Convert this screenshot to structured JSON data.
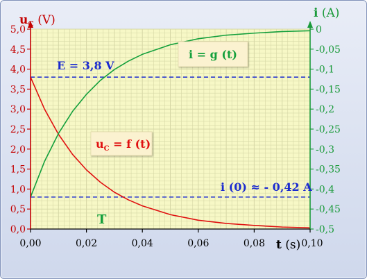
{
  "chart_data": {
    "type": "line",
    "y_left_label": {
      "main": "u",
      "sub": "C",
      "unit": "(V)"
    },
    "y_right_label": {
      "main": "i",
      "unit": "(A)"
    },
    "x_label": {
      "main": "t",
      "unit": "(s)"
    },
    "x_range": [
      0,
      0.1
    ],
    "y_left_range": [
      0,
      5.0
    ],
    "y_right_range": [
      -0.5,
      0
    ],
    "x_ticks": [
      "0,00",
      "0,02",
      "0,04",
      "0,06",
      "0,08",
      "0,10"
    ],
    "y_left_ticks": [
      "0,0",
      "0,5",
      "1,0",
      "1,5",
      "2,0",
      "2,5",
      "3,0",
      "3,5",
      "4,0",
      "4,5",
      "5,0"
    ],
    "y_right_ticks": [
      "-0,5",
      "-0,45",
      "-0,4",
      "-0,35",
      "-0,3",
      "-0,25",
      "-0,2",
      "-0,15",
      "-0,1",
      "-0,05",
      "0"
    ],
    "grid": true,
    "series": [
      {
        "axis": "left",
        "color": "#e01010",
        "label": {
          "main": "u",
          "sub": "C",
          "rest": " = f (t)"
        },
        "x": [
          0,
          0.005,
          0.01,
          0.015,
          0.02,
          0.025,
          0.03,
          0.035,
          0.04,
          0.05,
          0.06,
          0.07,
          0.08,
          0.09,
          0.1
        ],
        "y": [
          3.8,
          3.0,
          2.37,
          1.87,
          1.48,
          1.17,
          0.92,
          0.73,
          0.58,
          0.36,
          0.22,
          0.14,
          0.09,
          0.05,
          0.03
        ]
      },
      {
        "axis": "right",
        "color": "#14a03c",
        "label": {
          "main": "i = g (t)"
        },
        "x": [
          0,
          0.005,
          0.01,
          0.015,
          0.02,
          0.025,
          0.03,
          0.035,
          0.04,
          0.05,
          0.06,
          0.07,
          0.08,
          0.09,
          0.1
        ],
        "y": [
          -0.42,
          -0.331,
          -0.261,
          -0.206,
          -0.163,
          -0.128,
          -0.101,
          -0.08,
          -0.063,
          -0.039,
          -0.024,
          -0.015,
          -0.01,
          -0.006,
          -0.004
        ]
      }
    ],
    "reference_lines": [
      {
        "axis": "left",
        "value": 3.8,
        "color": "#1a2ad0",
        "label": "E = 3,8 V"
      },
      {
        "axis": "right",
        "value": -0.42,
        "color": "#1a2ad0",
        "label": "i (0)  ≈ - 0,42 A"
      }
    ],
    "annotations": [
      {
        "text": "T",
        "color": "#14a03c"
      }
    ],
    "colors": {
      "plot_bg": "#f7f8c6",
      "grid": "#d6d7a6",
      "left_axis": "#c40000",
      "right_axis": "#1a9a3a"
    }
  }
}
